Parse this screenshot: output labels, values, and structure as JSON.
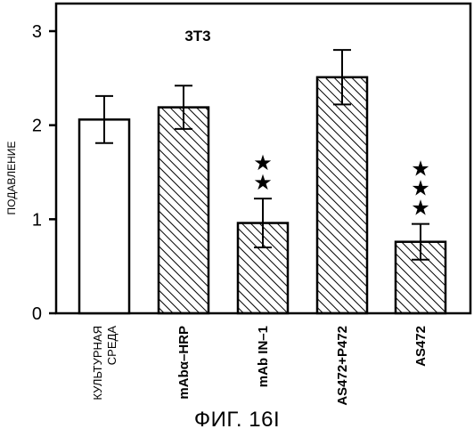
{
  "chart_data": {
    "type": "bar",
    "title": "3T3",
    "xlabel": "",
    "ylabel": "ПОДАВЛЕНИЕ",
    "ylim": [
      0,
      3
    ],
    "yticks": [
      "0",
      "1",
      "2",
      "3"
    ],
    "grid": false,
    "categories": [
      [
        "КУЛЬТУРНАЯ",
        "СРЕДА"
      ],
      [
        "mAbα–HRP"
      ],
      [
        "mAb IN–1"
      ],
      [
        "AS472+P472"
      ],
      [
        "AS472"
      ]
    ],
    "values": [
      2.06,
      2.19,
      0.96,
      2.51,
      0.76
    ],
    "errors": [
      0.25,
      0.23,
      0.26,
      0.29,
      0.19
    ],
    "patterns": [
      "open",
      "hatched",
      "hatched",
      "hatched",
      "hatched"
    ],
    "significance": [
      "",
      "",
      "★★",
      "",
      "★★★"
    ]
  },
  "caption": "ФИГ. 16I"
}
